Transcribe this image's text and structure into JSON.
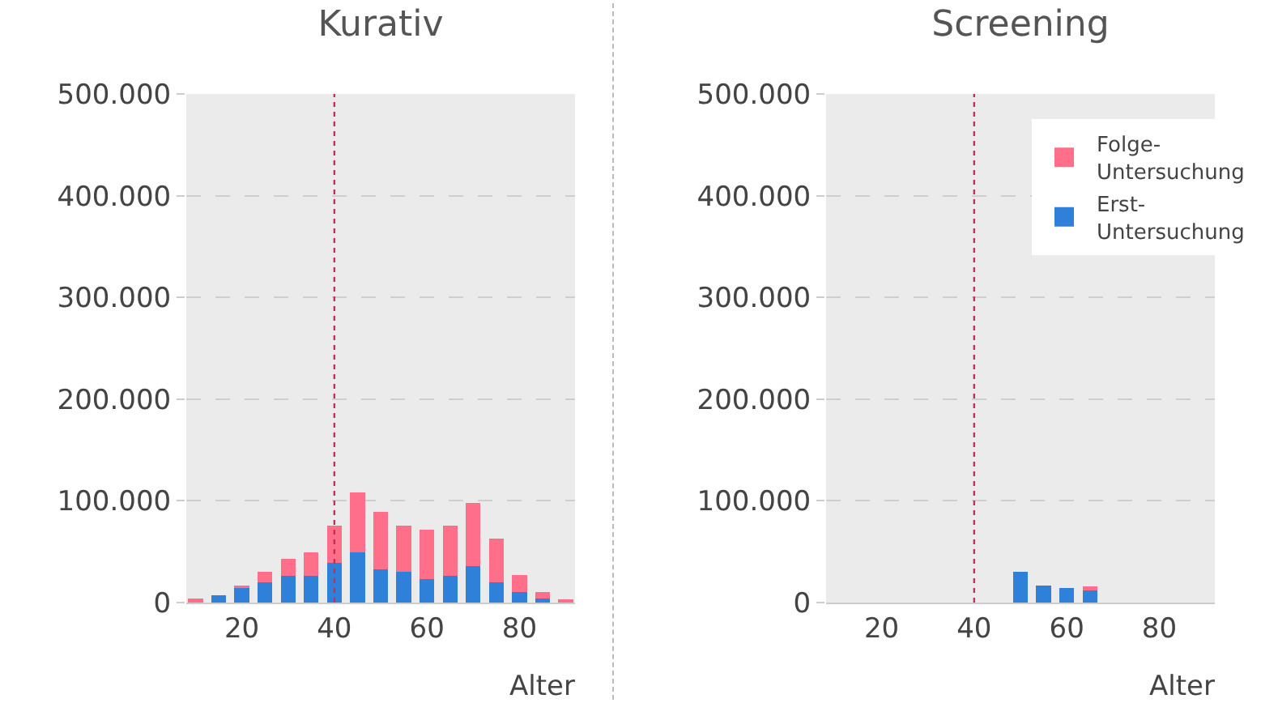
{
  "chart_data": [
    {
      "type": "bar",
      "title": "Kurativ",
      "xlabel": "Alter",
      "stacked": true,
      "x": [
        10,
        15,
        20,
        25,
        30,
        35,
        40,
        45,
        50,
        55,
        60,
        65,
        70,
        75,
        80,
        85,
        90
      ],
      "series": [
        {
          "color": "#2f80d8",
          "values": [
            0,
            7000,
            14000,
            20000,
            26000,
            26000,
            39000,
            49000,
            33000,
            30000,
            23000,
            26000,
            36000,
            20000,
            10000,
            4000,
            0
          ]
        },
        {
          "color": "#ff6f8a",
          "values": [
            4000,
            0,
            3000,
            10000,
            17000,
            23000,
            37000,
            59000,
            56000,
            46000,
            49000,
            50000,
            62000,
            43000,
            17000,
            6000,
            3000
          ]
        }
      ],
      "xlim": [
        8,
        92
      ],
      "xticks": [
        20,
        40,
        60,
        80
      ],
      "ylim": [
        0,
        500000
      ],
      "yticks": [
        {
          "value": 0,
          "label": "0"
        },
        {
          "value": 100000,
          "label": "100.000"
        },
        {
          "value": 200000,
          "label": "200.000"
        },
        {
          "value": 300000,
          "label": "300.000"
        },
        {
          "value": 400000,
          "label": "400.000"
        },
        {
          "value": 500000,
          "label": "500.000"
        }
      ],
      "grid": "y",
      "legend": false,
      "ref_lines": [
        {
          "axis": "x",
          "value": 40,
          "color": "#c0305a",
          "line_style": "dotted"
        }
      ]
    },
    {
      "type": "bar",
      "title": "Screening",
      "xlabel": "Alter",
      "stacked": true,
      "x": [
        50,
        55,
        60,
        65
      ],
      "series": [
        {
          "name": "Erst-Untersuchung",
          "color": "#2f80d8",
          "values": [
            30000,
            17000,
            14000,
            12000
          ]
        },
        {
          "name": "Folge-Untersuchung",
          "color": "#ff6f8a",
          "values": [
            0,
            0,
            0,
            4000
          ]
        }
      ],
      "xlim": [
        8,
        92
      ],
      "xticks": [
        20,
        40,
        60,
        80
      ],
      "ylim": [
        0,
        500000
      ],
      "yticks": [
        {
          "value": 0,
          "label": "0"
        },
        {
          "value": 100000,
          "label": "100.000"
        },
        {
          "value": 200000,
          "label": "200.000"
        },
        {
          "value": 300000,
          "label": "300.000"
        },
        {
          "value": 400000,
          "label": "400.000"
        },
        {
          "value": 500000,
          "label": "500.000"
        }
      ],
      "grid": "y",
      "legend": "top right",
      "ref_lines": [
        {
          "axis": "x",
          "value": 40,
          "color": "#c0305a",
          "line_style": "dotted"
        }
      ]
    }
  ]
}
